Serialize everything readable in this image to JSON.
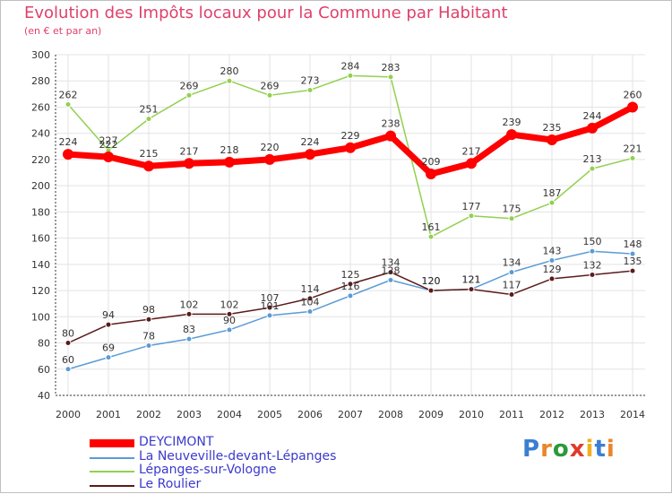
{
  "title": "Evolution des Impôts locaux pour la Commune par Habitant",
  "subtitle": "(en € et par an)",
  "logo": {
    "letters": [
      "P",
      "r",
      "o",
      "x",
      "i",
      "t",
      "i"
    ],
    "colors": [
      "#3a7fd0",
      "#e8862a",
      "#2a9a3a",
      "#e03b2a",
      "#f0b020",
      "#3a7fd0",
      "#e8862a"
    ]
  },
  "colors": {
    "title": "#e0406a",
    "axis_text": "#333333",
    "grid": "#e3e3e3"
  },
  "chart_data": {
    "type": "line",
    "x": [
      "2000",
      "2001",
      "2002",
      "2003",
      "2004",
      "2005",
      "2006",
      "2007",
      "2008",
      "2009",
      "2010",
      "2011",
      "2012",
      "2013",
      "2014"
    ],
    "ylim": [
      40,
      300
    ],
    "yticks": [
      40,
      60,
      80,
      100,
      120,
      140,
      160,
      180,
      200,
      220,
      240,
      260,
      280,
      300
    ],
    "grid": true,
    "legend_position": "bottom-left",
    "series": [
      {
        "name": "DEYCIMONT",
        "color": "#ff0000",
        "values": [
          224,
          222,
          215,
          217,
          218,
          220,
          224,
          229,
          238,
          209,
          217,
          239,
          235,
          244,
          260
        ]
      },
      {
        "name": "La Neuveville-devant-Lépanges",
        "color": "#5a9bd5",
        "values": [
          60,
          69,
          78,
          83,
          90,
          101,
          104,
          116,
          128,
          120,
          121,
          134,
          143,
          150,
          148
        ]
      },
      {
        "name": "Lépanges-sur-Vologne",
        "color": "#92d050",
        "values": [
          262,
          227,
          251,
          269,
          280,
          269,
          273,
          284,
          283,
          161,
          177,
          175,
          187,
          213,
          221
        ]
      },
      {
        "name": "Le Roulier",
        "color": "#5c1a1a",
        "values": [
          80,
          94,
          98,
          102,
          102,
          107,
          114,
          125,
          134,
          120,
          121,
          117,
          129,
          132,
          135
        ]
      }
    ]
  }
}
